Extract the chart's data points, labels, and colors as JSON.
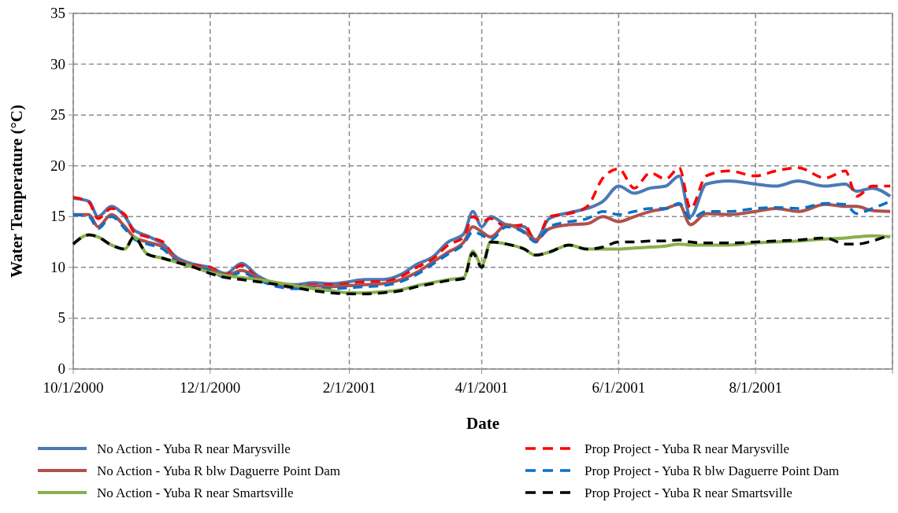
{
  "chart_data": {
    "type": "line",
    "xlabel": "Date",
    "ylabel": "Water Temperature (°C)",
    "x": [
      "2000-10-01",
      "2000-10-08",
      "2000-10-12",
      "2000-10-18",
      "2000-10-24",
      "2000-10-28",
      "2000-11-03",
      "2000-11-10",
      "2000-11-16",
      "2000-11-24",
      "2000-12-01",
      "2000-12-08",
      "2000-12-15",
      "2000-12-22",
      "2000-12-31",
      "2001-01-08",
      "2001-01-16",
      "2001-01-24",
      "2001-02-01",
      "2001-02-08",
      "2001-02-16",
      "2001-02-24",
      "2001-03-03",
      "2001-03-10",
      "2001-03-17",
      "2001-03-24",
      "2001-03-28",
      "2001-04-01",
      "2001-04-05",
      "2001-04-12",
      "2001-04-20",
      "2001-04-25",
      "2001-05-01",
      "2001-05-10",
      "2001-05-18",
      "2001-05-25",
      "2001-06-01",
      "2001-06-08",
      "2001-06-15",
      "2001-06-22",
      "2001-06-28",
      "2001-07-03",
      "2001-07-10",
      "2001-07-20",
      "2001-08-01",
      "2001-08-10",
      "2001-08-20",
      "2001-09-01",
      "2001-09-10",
      "2001-09-15",
      "2001-09-22",
      "2001-09-30"
    ],
    "xlim": [
      "2000-10-01",
      "2001-10-01"
    ],
    "xticks": [
      {
        "value": "2000-10-01",
        "label": "10/1/2000"
      },
      {
        "value": "2000-12-01",
        "label": "12/1/2000"
      },
      {
        "value": "2001-02-01",
        "label": "2/1/2001"
      },
      {
        "value": "2001-04-01",
        "label": "4/1/2001"
      },
      {
        "value": "2001-06-01",
        "label": "6/1/2001"
      },
      {
        "value": "2001-08-01",
        "label": "8/1/2001"
      },
      {
        "value": "2001-10-01",
        "label": null
      }
    ],
    "ylim": [
      0,
      35
    ],
    "yticks": [
      0,
      5,
      10,
      15,
      20,
      25,
      30,
      35
    ],
    "grid": true,
    "legend": "bottom",
    "series": [
      {
        "name": "No Action - Yuba R near Marysville",
        "color": "#4a7ab5",
        "line_style": "solid",
        "values": [
          16.8,
          16.5,
          15.0,
          16.0,
          15.0,
          13.7,
          13.1,
          12.3,
          11.0,
          10.3,
          10.0,
          9.4,
          10.4,
          9.2,
          8.4,
          8.3,
          8.5,
          8.4,
          8.6,
          8.8,
          8.8,
          9.3,
          10.3,
          11.0,
          12.5,
          13.3,
          15.5,
          14.0,
          15.0,
          14.2,
          14.0,
          12.7,
          14.8,
          15.4,
          15.8,
          16.5,
          18.0,
          17.3,
          17.8,
          18.0,
          19.0,
          15.0,
          18.2,
          18.5,
          18.2,
          18.0,
          18.5,
          18.0,
          18.2,
          17.5,
          17.8,
          17.0
        ]
      },
      {
        "name": "Prop Project - Yuba R near Marysville",
        "color": "#ff0000",
        "line_style": "dashed",
        "values": [
          16.9,
          16.4,
          14.8,
          15.8,
          15.2,
          13.5,
          13.0,
          12.5,
          10.8,
          10.2,
          10.0,
          9.3,
          10.2,
          9.0,
          8.3,
          8.2,
          8.3,
          8.3,
          8.4,
          8.6,
          8.6,
          9.1,
          10.0,
          10.8,
          12.2,
          13.0,
          15.0,
          14.5,
          14.8,
          14.0,
          14.2,
          12.5,
          15.0,
          15.3,
          16.0,
          18.8,
          19.7,
          17.8,
          19.3,
          18.7,
          19.8,
          15.8,
          19.0,
          19.5,
          19.0,
          19.5,
          19.8,
          18.8,
          19.5,
          17.0,
          18.0,
          18.0
        ]
      },
      {
        "name": "No Action - Yuba R blw Daguerre Point Dam",
        "color": "#b0504c",
        "line_style": "solid",
        "values": [
          15.2,
          15.2,
          14.0,
          15.2,
          14.0,
          13.0,
          12.5,
          12.0,
          10.8,
          10.1,
          9.8,
          9.2,
          9.7,
          9.0,
          8.3,
          8.0,
          8.2,
          8.1,
          8.2,
          8.3,
          8.4,
          8.8,
          9.5,
          10.5,
          11.5,
          12.5,
          14.0,
          13.5,
          13.0,
          14.2,
          13.5,
          12.7,
          13.8,
          14.2,
          14.3,
          15.0,
          14.5,
          15.0,
          15.5,
          15.8,
          16.2,
          14.2,
          15.3,
          15.2,
          15.5,
          15.8,
          15.5,
          16.2,
          16.0,
          16.0,
          15.6,
          15.5
        ]
      },
      {
        "name": "Prop Project - Yuba R blw Daguerre Point Dam",
        "color": "#0a70c8",
        "line_style": "dashed",
        "values": [
          15.2,
          15.0,
          13.8,
          15.0,
          13.8,
          12.8,
          12.3,
          11.8,
          10.6,
          10.0,
          9.7,
          9.0,
          9.5,
          8.8,
          8.1,
          7.9,
          8.0,
          7.9,
          8.0,
          8.1,
          8.2,
          8.6,
          9.3,
          10.3,
          11.3,
          12.3,
          13.5,
          13.2,
          12.7,
          14.0,
          13.4,
          12.5,
          14.0,
          14.5,
          14.8,
          15.5,
          15.2,
          15.5,
          15.8,
          15.8,
          16.3,
          14.8,
          15.5,
          15.5,
          15.8,
          15.9,
          15.8,
          16.3,
          16.2,
          15.3,
          15.8,
          16.5
        ]
      },
      {
        "name": "No Action - Yuba R near Smartsville",
        "color": "#8ab04c",
        "line_style": "solid",
        "values": [
          12.3,
          13.2,
          13.0,
          12.2,
          11.8,
          13.0,
          11.3,
          10.9,
          10.5,
          10.0,
          9.5,
          9.2,
          9.0,
          8.8,
          8.5,
          8.2,
          7.9,
          7.7,
          7.5,
          7.5,
          7.6,
          7.8,
          8.2,
          8.5,
          8.8,
          9.0,
          11.6,
          10.2,
          12.5,
          12.3,
          11.8,
          11.2,
          11.5,
          12.2,
          11.8,
          11.8,
          11.8,
          11.9,
          12.0,
          12.1,
          12.3,
          12.2,
          12.2,
          12.2,
          12.4,
          12.5,
          12.6,
          12.8,
          12.9,
          13.0,
          13.1,
          13.0
        ]
      },
      {
        "name": "Prop Project - Yuba R near Smartsville",
        "color": "#000000",
        "line_style": "dashed",
        "values": [
          12.3,
          13.2,
          13.0,
          12.2,
          11.8,
          13.0,
          11.3,
          10.9,
          10.5,
          10.0,
          9.4,
          9.0,
          8.8,
          8.6,
          8.3,
          8.0,
          7.7,
          7.5,
          7.4,
          7.4,
          7.5,
          7.7,
          8.1,
          8.4,
          8.7,
          8.9,
          11.4,
          10.0,
          12.5,
          12.3,
          11.8,
          11.2,
          11.5,
          12.2,
          11.8,
          12.0,
          12.5,
          12.5,
          12.6,
          12.6,
          12.7,
          12.5,
          12.4,
          12.4,
          12.5,
          12.6,
          12.7,
          12.9,
          12.3,
          12.3,
          12.6,
          13.2
        ]
      }
    ]
  }
}
